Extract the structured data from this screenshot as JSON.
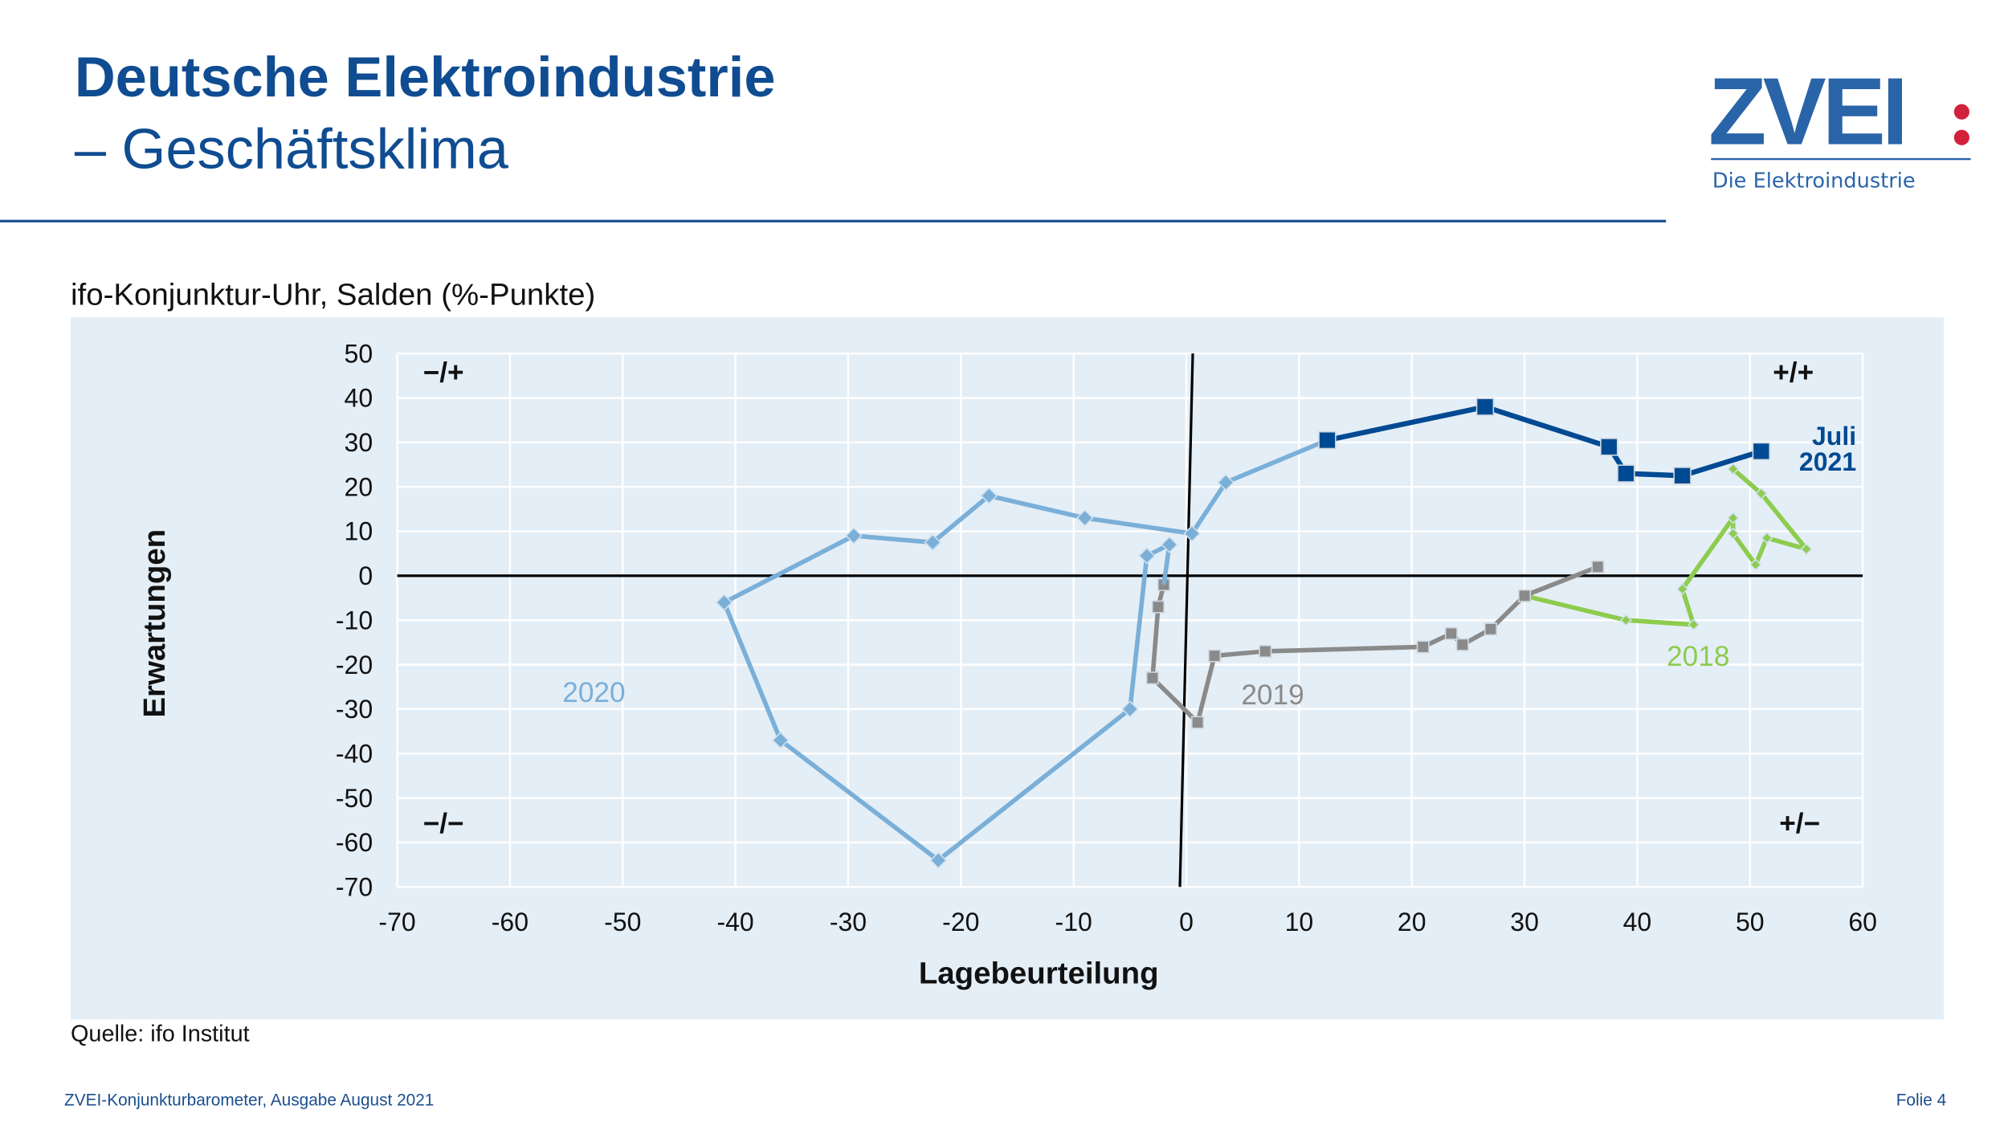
{
  "header": {
    "title": "Deutsche Elektroindustrie",
    "subtitle": "– Geschäftsklima",
    "logo_text": "ZVEI:",
    "logo_tagline": "Die Elektroindustrie"
  },
  "chart_heading": "ifo-Konjunktur-Uhr, Salden (%-Punkte)",
  "source": "Quelle: ifo Institut",
  "footer": {
    "left": "ZVEI-Konjunkturbarometer, Ausgabe August 2021",
    "right": "Folie 4"
  },
  "chart_data": {
    "type": "line",
    "xlabel": "Lagebeurteilung",
    "ylabel": "Erwartungen",
    "xlim": [
      -70,
      60
    ],
    "ylim": [
      -70,
      50
    ],
    "xticks": [
      -70,
      -60,
      -50,
      -40,
      -30,
      -20,
      -10,
      0,
      10,
      20,
      30,
      40,
      50,
      60
    ],
    "yticks": [
      50,
      40,
      30,
      20,
      10,
      0,
      -10,
      -20,
      -30,
      -40,
      -50,
      -60,
      -70
    ],
    "grid": true,
    "quadrant_labels": {
      "top_left": "−/+",
      "top_right": "+/+",
      "bottom_left": "−/−",
      "bottom_right": "+/−"
    },
    "series": [
      {
        "name": "2018",
        "color": "#8dcc4e",
        "marker": "diamond",
        "points": [
          [
            48.5,
            24
          ],
          [
            51,
            18.5
          ],
          [
            55,
            6
          ],
          [
            51.5,
            8.5
          ],
          [
            50.5,
            2.5
          ],
          [
            48.5,
            9.5
          ],
          [
            48.5,
            13
          ],
          [
            44,
            -3
          ],
          [
            45,
            -11
          ],
          [
            39,
            -10
          ],
          [
            30,
            -4.5
          ]
        ]
      },
      {
        "name": "2019",
        "color": "#8a8a8a",
        "marker": "square",
        "points": [
          [
            36.5,
            2
          ],
          [
            30,
            -4.5
          ],
          [
            27,
            -12
          ],
          [
            24.5,
            -15.5
          ],
          [
            23.5,
            -13
          ],
          [
            21,
            -16
          ],
          [
            7,
            -17
          ],
          [
            2.5,
            -18
          ],
          [
            1,
            -33
          ],
          [
            -3,
            -23
          ],
          [
            -2.5,
            -7
          ],
          [
            -2,
            -2
          ]
        ]
      },
      {
        "name": "2020",
        "color": "#7aafd8",
        "marker": "diamond",
        "points": [
          [
            -2,
            -2
          ],
          [
            -1.5,
            7
          ],
          [
            -3.5,
            4.5
          ],
          [
            -5,
            -30
          ],
          [
            -22,
            -64
          ],
          [
            -36,
            -37
          ],
          [
            -41,
            -6
          ],
          [
            -29.5,
            9
          ],
          [
            -22.5,
            7.5
          ],
          [
            -17.5,
            18
          ],
          [
            -9,
            13
          ],
          [
            0.5,
            9.5
          ],
          [
            3.5,
            21
          ],
          [
            12.5,
            30.5
          ]
        ]
      },
      {
        "name": "Juli 2021",
        "color": "#004a93",
        "marker": "square",
        "points": [
          [
            12.5,
            30.5
          ],
          [
            26.5,
            38
          ],
          [
            37.5,
            29
          ],
          [
            39,
            23
          ],
          [
            44,
            22.5
          ],
          [
            51,
            28
          ]
        ]
      }
    ],
    "series_labels": {
      "2018": "2018",
      "2019": "2019",
      "2020": "2020",
      "2021_line1": "Juli",
      "2021_line2": "2021"
    }
  }
}
